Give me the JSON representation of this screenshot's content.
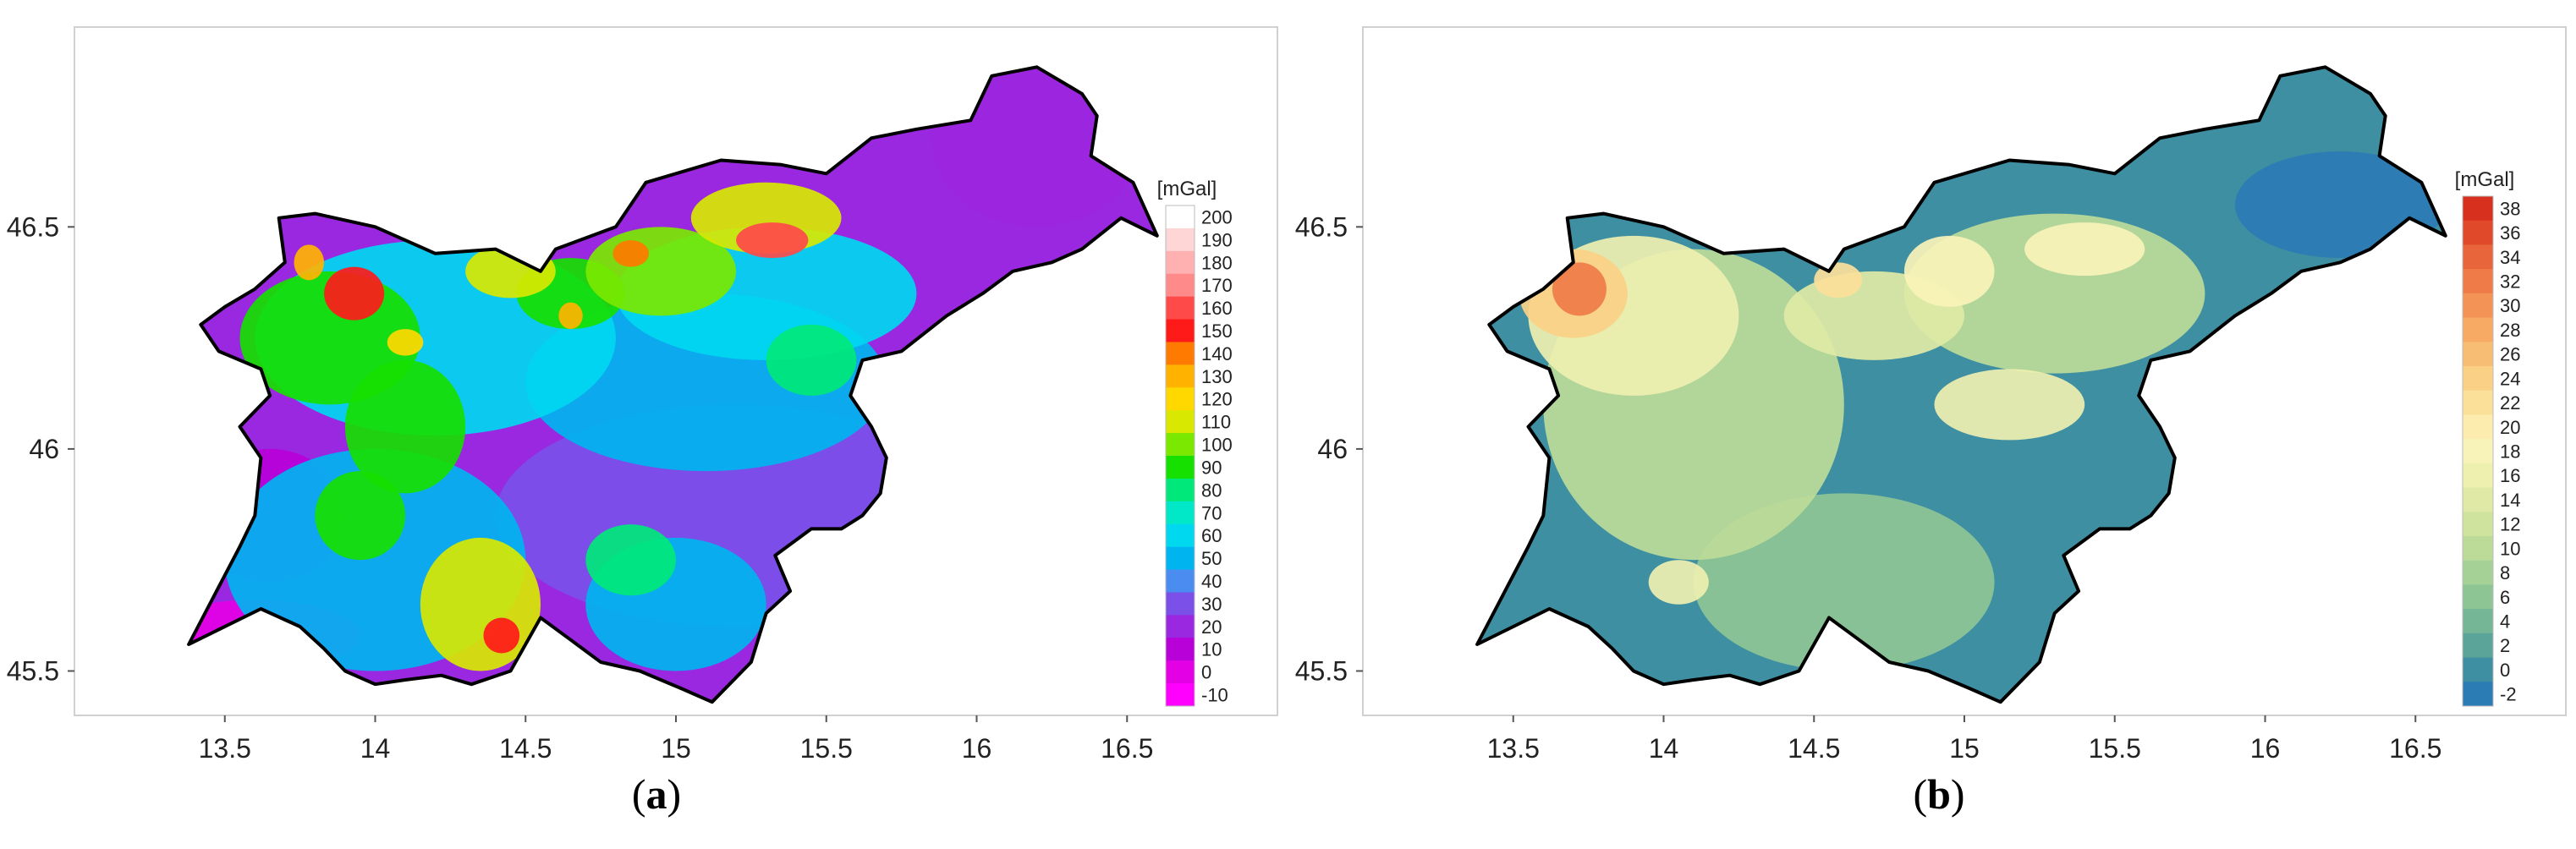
{
  "chart_data": [
    {
      "type": "heatmap",
      "panel_label": "a",
      "colorbar_title": "[mGal]",
      "colorbar_ticks": [
        200,
        190,
        180,
        170,
        160,
        150,
        140,
        130,
        120,
        110,
        100,
        90,
        80,
        70,
        60,
        50,
        40,
        30,
        20,
        10,
        0,
        -10
      ],
      "colorbar_colors": [
        "#ffffff",
        "#ffd6d6",
        "#ffb0b0",
        "#ff8a8a",
        "#ff4a4a",
        "#ff1a1a",
        "#ff7a00",
        "#ffb300",
        "#ffd800",
        "#d8e800",
        "#7ae800",
        "#16e000",
        "#00e87a",
        "#00e8c8",
        "#00d8f0",
        "#00b4f0",
        "#4a8cf0",
        "#7a50e8",
        "#9a28e0",
        "#b800d8",
        "#e400e4",
        "#ff00ff"
      ],
      "xlim": [
        13,
        17
      ],
      "ylim": [
        45.4,
        46.95
      ],
      "xticks": [
        13.5,
        14,
        14.5,
        15,
        15.5,
        16,
        16.5
      ],
      "yticks": [
        46.5,
        46,
        45.5
      ],
      "xtick_labels": [
        "13.5",
        "14",
        "14.5",
        "15",
        "15.5",
        "16",
        "16.5"
      ],
      "ytick_labels": [
        "46.5",
        "46",
        "45.5"
      ],
      "vmin": -10,
      "vmax": 200
    },
    {
      "type": "heatmap",
      "panel_label": "b",
      "colorbar_title": "[mGal]",
      "colorbar_ticks": [
        38,
        36,
        34,
        32,
        30,
        28,
        26,
        24,
        22,
        20,
        18,
        16,
        14,
        12,
        10,
        8,
        6,
        4,
        2,
        0,
        -2
      ],
      "colorbar_colors": [
        "#d7301f",
        "#e04a2a",
        "#e8643a",
        "#ef7c48",
        "#f39456",
        "#f6aa64",
        "#f8bd74",
        "#fad086",
        "#fbe09a",
        "#fcedae",
        "#f8f3b8",
        "#eef0b0",
        "#e0eaa6",
        "#cfe39e",
        "#bcdb98",
        "#a6d196",
        "#8ec595",
        "#74b696",
        "#5aa49a",
        "#3f8fa2",
        "#2b7bb4"
      ],
      "xlim": [
        13,
        17
      ],
      "ylim": [
        45.4,
        46.95
      ],
      "xticks": [
        13.5,
        14,
        14.5,
        15,
        15.5,
        16,
        16.5
      ],
      "yticks": [
        46.5,
        46,
        45.5
      ],
      "xtick_labels": [
        "13.5",
        "14",
        "14.5",
        "15",
        "15.5",
        "16",
        "16.5"
      ],
      "ytick_labels": [
        "46.5",
        "46",
        "45.5"
      ],
      "vmin": -2,
      "vmax": 38
    }
  ],
  "captions": [
    "a",
    "b"
  ]
}
